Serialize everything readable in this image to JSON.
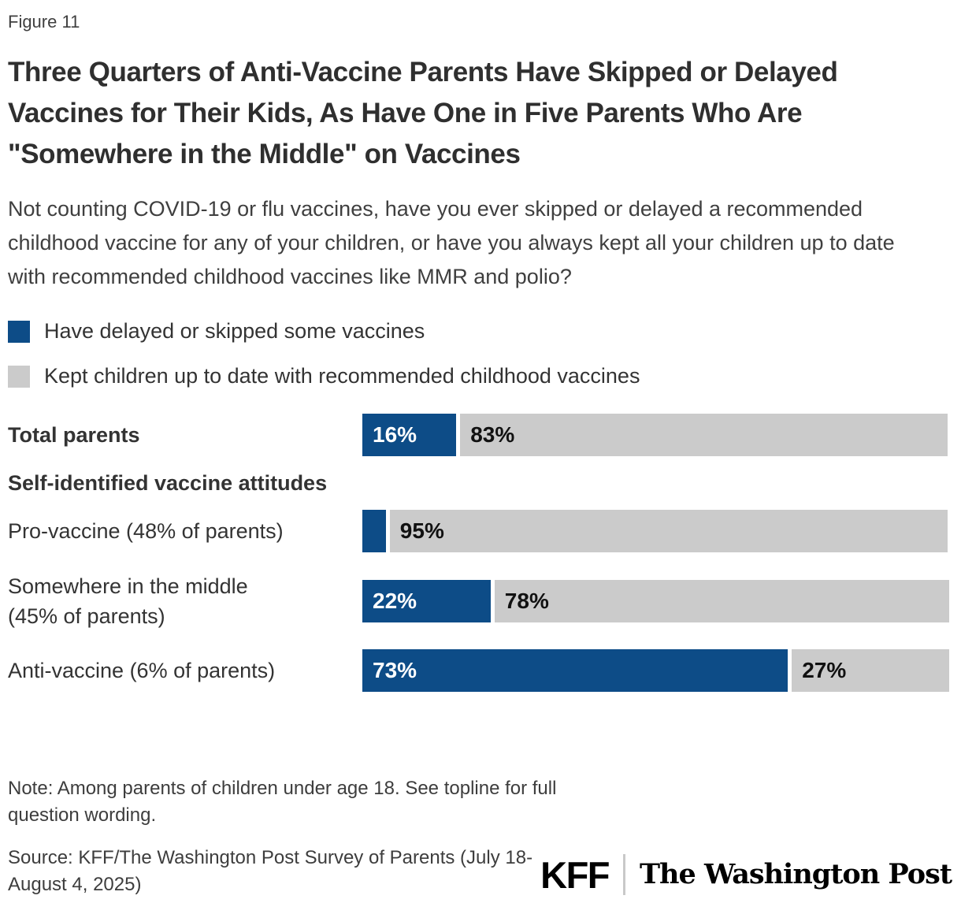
{
  "figure_label": "Figure 11",
  "title": "Three Quarters of Anti-Vaccine Parents Have Skipped or Delayed Vaccines for Their Kids, As Have One in Five Parents Who Are \"Somewhere in the Middle\" on Vaccines",
  "question": "Not counting COVID-19 or flu vaccines, have you ever skipped or delayed a recommended childhood vaccine for any of your children, or have you always kept all your children up to date with recommended childhood vaccines like MMR and polio?",
  "colors": {
    "delayed_blue": "#0d4c87",
    "kept_gray": "#cbcbcb"
  },
  "legend": {
    "delayed": {
      "label": "Have delayed or skipped some vaccines",
      "color": "#0d4c87"
    },
    "kept": {
      "label": "Kept children up to date with recommended childhood vaccines",
      "color": "#cbcbcb"
    }
  },
  "chart_data": {
    "type": "bar",
    "orientation": "horizontal",
    "stacked": true,
    "unit": "percent",
    "xlim": [
      0,
      100
    ],
    "grid": false,
    "legend_position": "top-left",
    "series_names": [
      "Have delayed or skipped some vaccines",
      "Kept children up to date with recommended childhood vaccines"
    ],
    "section_header": "Self-identified vaccine attitudes",
    "rows": [
      {
        "label": "Total parents",
        "label_lines": [
          "Total parents"
        ],
        "values": [
          16,
          83
        ],
        "value_labels": [
          "16%",
          "83%"
        ]
      },
      {
        "label": "Pro-vaccine (48% of parents)",
        "label_lines": [
          "Pro-vaccine (48% of parents)"
        ],
        "values": [
          4,
          95
        ],
        "value_labels": [
          "",
          "95%"
        ]
      },
      {
        "label": "Somewhere in the middle (45% of parents)",
        "label_lines": [
          "Somewhere in the middle",
          "(45% of parents)"
        ],
        "values": [
          22,
          78
        ],
        "value_labels": [
          "22%",
          "78%"
        ]
      },
      {
        "label": "Anti-vaccine (6% of parents)",
        "label_lines": [
          "Anti-vaccine (6% of parents)"
        ],
        "values": [
          73,
          27
        ],
        "value_labels": [
          "73%",
          "27%"
        ]
      }
    ]
  },
  "note": "Note: Among parents of children under age 18. See topline for full question wording.",
  "source": "Source: KFF/The Washington Post Survey of Parents (July 18-August 4, 2025)",
  "logos": {
    "kff": "KFF",
    "wapo": "The Washington Post"
  }
}
